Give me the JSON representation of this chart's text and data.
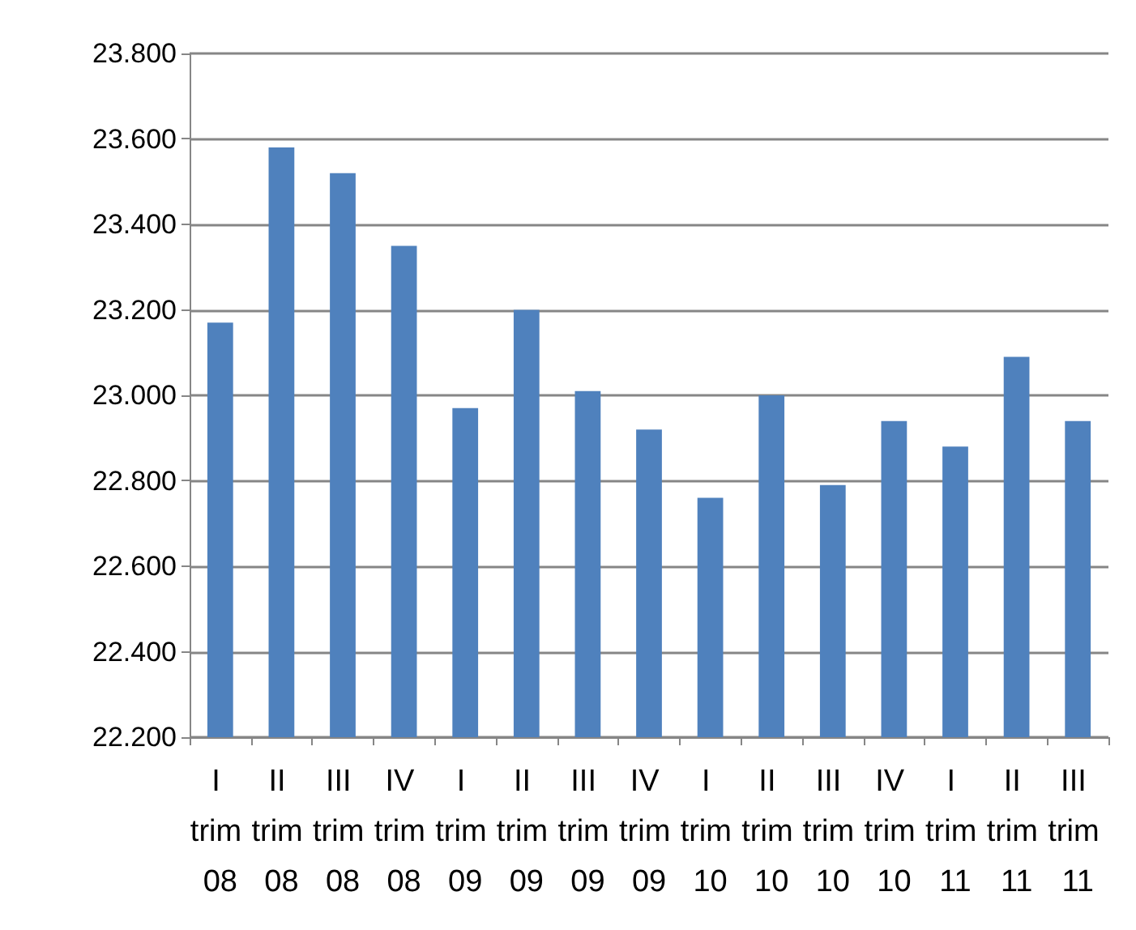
{
  "chart_data": {
    "type": "bar",
    "categories": [
      "I trim 08",
      "II trim 08",
      "III trim 08",
      "IV trim 08",
      "I trim 09",
      "II trim 09",
      "III trim 09",
      "IV trim 09",
      "I trim 10",
      "II trim 10",
      "III trim 10",
      "IV trim 10",
      "I trim 11",
      "II trim 11",
      "III trim 11"
    ],
    "values": [
      23.17,
      23.58,
      23.52,
      23.35,
      22.97,
      23.2,
      23.01,
      22.92,
      22.76,
      23.0,
      22.79,
      22.94,
      22.88,
      23.09,
      22.94
    ],
    "color": "#4f81bd",
    "ylim": [
      22.2,
      23.8
    ],
    "yticks": [
      {
        "value": 22.2,
        "label": "22.200"
      },
      {
        "value": 22.4,
        "label": "22.400"
      },
      {
        "value": 22.6,
        "label": "22.600"
      },
      {
        "value": 22.8,
        "label": "22.800"
      },
      {
        "value": 23.0,
        "label": "23.000"
      },
      {
        "value": 23.2,
        "label": "23.200"
      },
      {
        "value": 23.4,
        "label": "23.400"
      },
      {
        "value": 23.6,
        "label": "23.600"
      },
      {
        "value": 23.8,
        "label": "23.800"
      }
    ],
    "grid": "y"
  }
}
